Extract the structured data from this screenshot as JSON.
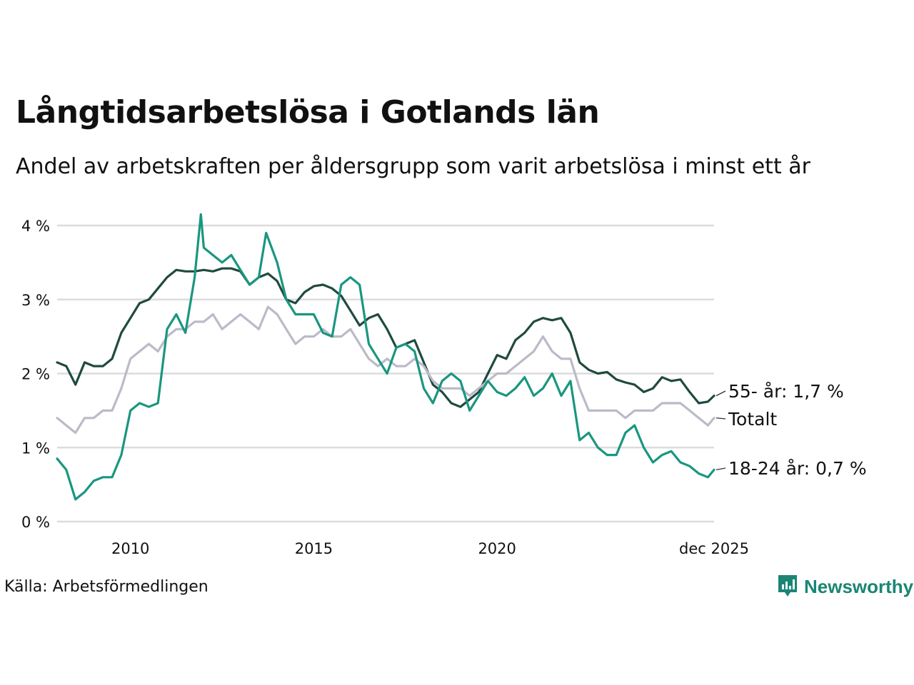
{
  "header": {
    "title": "Långtidsarbetslösa i Gotlands län",
    "subtitle": "Andel av arbetskraften per åldersgrupp som varit arbetslösa i minst ett år"
  },
  "footer": {
    "source": "Källa: Arbetsförmedlingen",
    "brand": "Newsworthy"
  },
  "colors": {
    "age55": "#1f4a40",
    "age18_24": "#1a9680",
    "total": "#bcbac8",
    "grid": "#dcdcdc",
    "brand": "#1a8575"
  },
  "chart_data": {
    "type": "line",
    "title": "Långtidsarbetslösa i Gotlands län",
    "ylabel": "",
    "xlabel": "",
    "ylim": [
      0,
      4
    ],
    "xlim": [
      2008.0,
      2025.917
    ],
    "y_ticks": [
      0,
      1,
      2,
      3,
      4
    ],
    "y_tick_labels": [
      "0 %",
      "1 %",
      "2 %",
      "3 %",
      "4 %"
    ],
    "x_ticks": [
      2010,
      2015,
      2020,
      2025.917
    ],
    "x_tick_labels": [
      "2010",
      "2015",
      "2020",
      "dec 2025"
    ],
    "grid": true,
    "series": [
      {
        "name": "55- år",
        "key": "age55",
        "end_label": "55- år: 1,7 %",
        "x": [
          2008.0,
          2008.25,
          2008.5,
          2008.75,
          2009.0,
          2009.25,
          2009.5,
          2009.75,
          2010.0,
          2010.25,
          2010.5,
          2010.75,
          2011.0,
          2011.25,
          2011.5,
          2011.75,
          2012.0,
          2012.25,
          2012.5,
          2012.75,
          2013.0,
          2013.25,
          2013.5,
          2013.75,
          2014.0,
          2014.25,
          2014.5,
          2014.75,
          2015.0,
          2015.25,
          2015.5,
          2015.75,
          2016.0,
          2016.25,
          2016.5,
          2016.75,
          2017.0,
          2017.25,
          2017.5,
          2017.75,
          2018.0,
          2018.25,
          2018.5,
          2018.75,
          2019.0,
          2019.25,
          2019.5,
          2019.75,
          2020.0,
          2020.25,
          2020.5,
          2020.75,
          2021.0,
          2021.25,
          2021.5,
          2021.75,
          2022.0,
          2022.25,
          2022.5,
          2022.75,
          2023.0,
          2023.25,
          2023.5,
          2023.75,
          2024.0,
          2024.25,
          2024.5,
          2024.75,
          2025.0,
          2025.25,
          2025.5,
          2025.75,
          2025.917
        ],
        "values": [
          2.15,
          2.1,
          1.85,
          2.15,
          2.1,
          2.1,
          2.2,
          2.55,
          2.75,
          2.95,
          3.0,
          3.15,
          3.3,
          3.4,
          3.38,
          3.38,
          3.4,
          3.38,
          3.42,
          3.42,
          3.38,
          3.2,
          3.3,
          3.35,
          3.25,
          3.0,
          2.95,
          3.1,
          3.18,
          3.2,
          3.15,
          3.05,
          2.85,
          2.65,
          2.75,
          2.8,
          2.6,
          2.35,
          2.4,
          2.45,
          2.15,
          1.85,
          1.75,
          1.6,
          1.55,
          1.65,
          1.75,
          2.0,
          2.25,
          2.2,
          2.45,
          2.55,
          2.7,
          2.75,
          2.72,
          2.75,
          2.55,
          2.15,
          2.05,
          2.0,
          2.02,
          1.92,
          1.88,
          1.85,
          1.75,
          1.8,
          1.95,
          1.9,
          1.92,
          1.75,
          1.6,
          1.62,
          1.7
        ]
      },
      {
        "name": "Totalt",
        "key": "total",
        "end_label": "Totalt",
        "x": [
          2008.0,
          2008.25,
          2008.5,
          2008.75,
          2009.0,
          2009.25,
          2009.5,
          2009.75,
          2010.0,
          2010.25,
          2010.5,
          2010.75,
          2011.0,
          2011.25,
          2011.5,
          2011.75,
          2012.0,
          2012.25,
          2012.5,
          2012.75,
          2013.0,
          2013.25,
          2013.5,
          2013.75,
          2014.0,
          2014.25,
          2014.5,
          2014.75,
          2015.0,
          2015.25,
          2015.5,
          2015.75,
          2016.0,
          2016.25,
          2016.5,
          2016.75,
          2017.0,
          2017.25,
          2017.5,
          2017.75,
          2018.0,
          2018.25,
          2018.5,
          2018.75,
          2019.0,
          2019.25,
          2019.5,
          2019.75,
          2020.0,
          2020.25,
          2020.5,
          2020.75,
          2021.0,
          2021.25,
          2021.5,
          2021.75,
          2022.0,
          2022.25,
          2022.5,
          2022.75,
          2023.0,
          2023.25,
          2023.5,
          2023.75,
          2024.0,
          2024.25,
          2024.5,
          2024.75,
          2025.0,
          2025.25,
          2025.5,
          2025.75,
          2025.917
        ],
        "values": [
          1.4,
          1.3,
          1.2,
          1.4,
          1.4,
          1.5,
          1.5,
          1.8,
          2.2,
          2.3,
          2.4,
          2.3,
          2.5,
          2.6,
          2.6,
          2.7,
          2.7,
          2.8,
          2.6,
          2.7,
          2.8,
          2.7,
          2.6,
          2.9,
          2.8,
          2.6,
          2.4,
          2.5,
          2.5,
          2.6,
          2.5,
          2.5,
          2.6,
          2.4,
          2.2,
          2.1,
          2.2,
          2.1,
          2.1,
          2.2,
          2.1,
          1.9,
          1.8,
          1.8,
          1.8,
          1.7,
          1.8,
          1.9,
          2.0,
          2.0,
          2.1,
          2.2,
          2.3,
          2.5,
          2.3,
          2.2,
          2.2,
          1.8,
          1.5,
          1.5,
          1.5,
          1.5,
          1.4,
          1.5,
          1.5,
          1.5,
          1.6,
          1.6,
          1.6,
          1.5,
          1.4,
          1.3,
          1.4
        ]
      },
      {
        "name": "18-24 år",
        "key": "age18_24",
        "end_label": "18-24 år: 0,7 %",
        "x": [
          2008.0,
          2008.25,
          2008.5,
          2008.75,
          2009.0,
          2009.25,
          2009.5,
          2009.75,
          2010.0,
          2010.25,
          2010.5,
          2010.75,
          2011.0,
          2011.25,
          2011.5,
          2011.75,
          2011.92,
          2012.0,
          2012.25,
          2012.5,
          2012.75,
          2013.0,
          2013.25,
          2013.5,
          2013.7,
          2014.0,
          2014.25,
          2014.5,
          2014.75,
          2015.0,
          2015.25,
          2015.5,
          2015.75,
          2016.0,
          2016.25,
          2016.5,
          2016.75,
          2017.0,
          2017.25,
          2017.5,
          2017.75,
          2018.0,
          2018.25,
          2018.5,
          2018.75,
          2019.0,
          2019.25,
          2019.5,
          2019.75,
          2020.0,
          2020.25,
          2020.5,
          2020.75,
          2021.0,
          2021.25,
          2021.5,
          2021.75,
          2022.0,
          2022.25,
          2022.5,
          2022.75,
          2023.0,
          2023.25,
          2023.5,
          2023.75,
          2024.0,
          2024.25,
          2024.5,
          2024.75,
          2025.0,
          2025.25,
          2025.5,
          2025.75,
          2025.917
        ],
        "values": [
          0.85,
          0.7,
          0.3,
          0.4,
          0.55,
          0.6,
          0.6,
          0.9,
          1.5,
          1.6,
          1.55,
          1.6,
          2.6,
          2.8,
          2.55,
          3.3,
          4.15,
          3.7,
          3.6,
          3.5,
          3.6,
          3.4,
          3.2,
          3.3,
          3.9,
          3.5,
          3.0,
          2.8,
          2.8,
          2.8,
          2.55,
          2.5,
          3.2,
          3.3,
          3.2,
          2.4,
          2.2,
          2.0,
          2.35,
          2.4,
          2.3,
          1.8,
          1.6,
          1.9,
          2.0,
          1.9,
          1.5,
          1.7,
          1.9,
          1.75,
          1.7,
          1.8,
          1.95,
          1.7,
          1.8,
          2.0,
          1.7,
          1.9,
          1.1,
          1.2,
          1.0,
          0.9,
          0.9,
          1.2,
          1.3,
          1.0,
          0.8,
          0.9,
          0.95,
          0.8,
          0.75,
          0.65,
          0.6,
          0.7
        ]
      }
    ]
  }
}
